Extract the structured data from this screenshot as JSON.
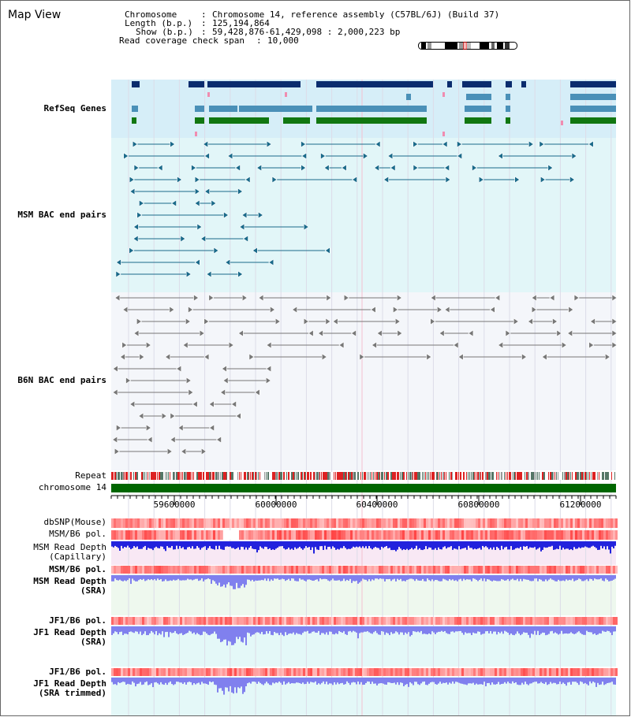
{
  "app": {
    "title": "Map View"
  },
  "info": {
    "chromosome_key": "Chromosome",
    "chromosome_val": "Chromosome 14, reference assembly (C57BL/6J) (Build 37)",
    "length_key": "Length (b.p.)",
    "length_val": "125,194,864",
    "show_key": "Show (b.p.)",
    "show_val": "59,428,876-61,429,098 : 2,000,223 bp",
    "coverage_key": "Read coverage check span",
    "coverage_val": "10,000"
  },
  "tracks": {
    "refseq": "RefSeq Genes",
    "msm_bac": "MSM BAC end pairs",
    "b6n_bac": "B6N BAC end pairs",
    "repeat": "Repeat",
    "chromosome": "chromosome 14",
    "dbsnp": "dbSNP(Mouse)",
    "msm_b6_pol_1": "MSM/B6 pol.",
    "msm_read_depth_cap_1": "MSM Read Depth",
    "msm_read_depth_cap_2": "(Capillary)",
    "msm_b6_pol_2": "MSM/B6 pol.",
    "msm_read_depth_sra_1": "MSM Read Depth",
    "msm_read_depth_sra_2": "(SRA)",
    "jf1_b6_pol_1": "JF1/B6 pol.",
    "jf1_read_depth_sra_1": "JF1 Read Depth",
    "jf1_read_depth_sra_2": "(SRA)",
    "jf1_b6_pol_2": "JF1/B6 pol.",
    "jf1_read_depth_trim_1": "JF1 Read Depth",
    "jf1_read_depth_trim_2": "(SRA trimmed)"
  },
  "axis": {
    "ticks": [
      "59600000",
      "60000000",
      "60400000",
      "60800000",
      "61200000"
    ]
  },
  "colors": {
    "refseq_navy": "#0a2c6e",
    "refseq_teal": "#4a90b8",
    "refseq_green": "#117711",
    "msm_bac": "#1a6a8a",
    "b6n_bac": "#777777",
    "label_navy": "#1a1aa0",
    "label_teal": "#1a6a8a",
    "label_gray": "#555555",
    "label_orange": "#dd8800",
    "depth_blue": "#2020e0",
    "chromosome_green": "#006600"
  }
}
